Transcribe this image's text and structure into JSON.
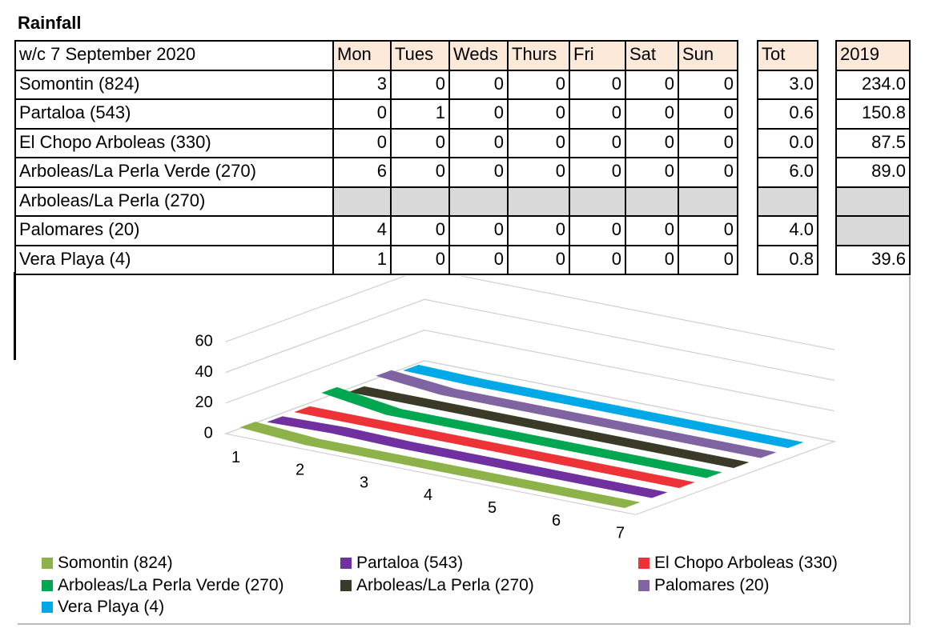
{
  "title": "Rainfall",
  "table": {
    "header": [
      "w/c 7 September  2020",
      "Mon",
      "Tues",
      "Weds",
      "Thurs",
      "Fri",
      "Sat",
      "Sun",
      "Tot",
      "2019"
    ],
    "rows": [
      [
        "Somontin (824)",
        "3",
        "0",
        "0",
        "0",
        "0",
        "0",
        "0",
        "3.0",
        "234.0"
      ],
      [
        "Partaloa (543)",
        "0",
        "1",
        "0",
        "0",
        "0",
        "0",
        "0",
        "0.6",
        "150.8"
      ],
      [
        "El Chopo Arboleas (330)",
        "0",
        "0",
        "0",
        "0",
        "0",
        "0",
        "0",
        "0.0",
        "87.5"
      ],
      [
        "Arboleas/La Perla Verde (270)",
        "6",
        "0",
        "0",
        "0",
        "0",
        "0",
        "0",
        "6.0",
        "89.0"
      ],
      [
        "Arboleas/La Perla (270)",
        null,
        null,
        null,
        null,
        null,
        null,
        null,
        null,
        null
      ],
      [
        "Palomares (20)",
        "4",
        "0",
        "0",
        "0",
        "0",
        "0",
        "0",
        "4.0",
        null
      ],
      [
        "Vera Playa (4)",
        "1",
        "0",
        "0",
        "0",
        "0",
        "0",
        "0",
        "0.8",
        "39.6"
      ]
    ]
  },
  "chart_data": {
    "type": "line",
    "categories": [
      "1",
      "2",
      "3",
      "4",
      "5",
      "6",
      "7"
    ],
    "ylim": [
      0,
      60
    ],
    "yticks": [
      0,
      20,
      40,
      60
    ],
    "grid": true,
    "series": [
      {
        "name": "Somontin (824)",
        "color": "#8db24a",
        "values": [
          3,
          0,
          0,
          0,
          0,
          0,
          0
        ]
      },
      {
        "name": "Partaloa (543)",
        "color": "#7030a0",
        "values": [
          0,
          1,
          0,
          0,
          0,
          0,
          0
        ]
      },
      {
        "name": "El Chopo Arboleas (330)",
        "color": "#ee3338",
        "values": [
          0,
          0,
          0,
          0,
          0,
          0,
          0
        ]
      },
      {
        "name": "Arboleas/La Perla Verde (270)",
        "color": "#00a650",
        "values": [
          6,
          0,
          0,
          0,
          0,
          0,
          0
        ]
      },
      {
        "name": "Arboleas/La Perla (270)",
        "color": "#3b3a28",
        "values": [
          0,
          0,
          0,
          0,
          0,
          0,
          0
        ]
      },
      {
        "name": "Palomares (20)",
        "color": "#8064a2",
        "values": [
          4,
          0,
          0,
          0,
          0,
          0,
          0
        ]
      },
      {
        "name": "Vera Playa (4)",
        "color": "#00a8e8",
        "values": [
          1,
          0,
          0,
          0,
          0,
          0,
          0
        ]
      }
    ]
  }
}
